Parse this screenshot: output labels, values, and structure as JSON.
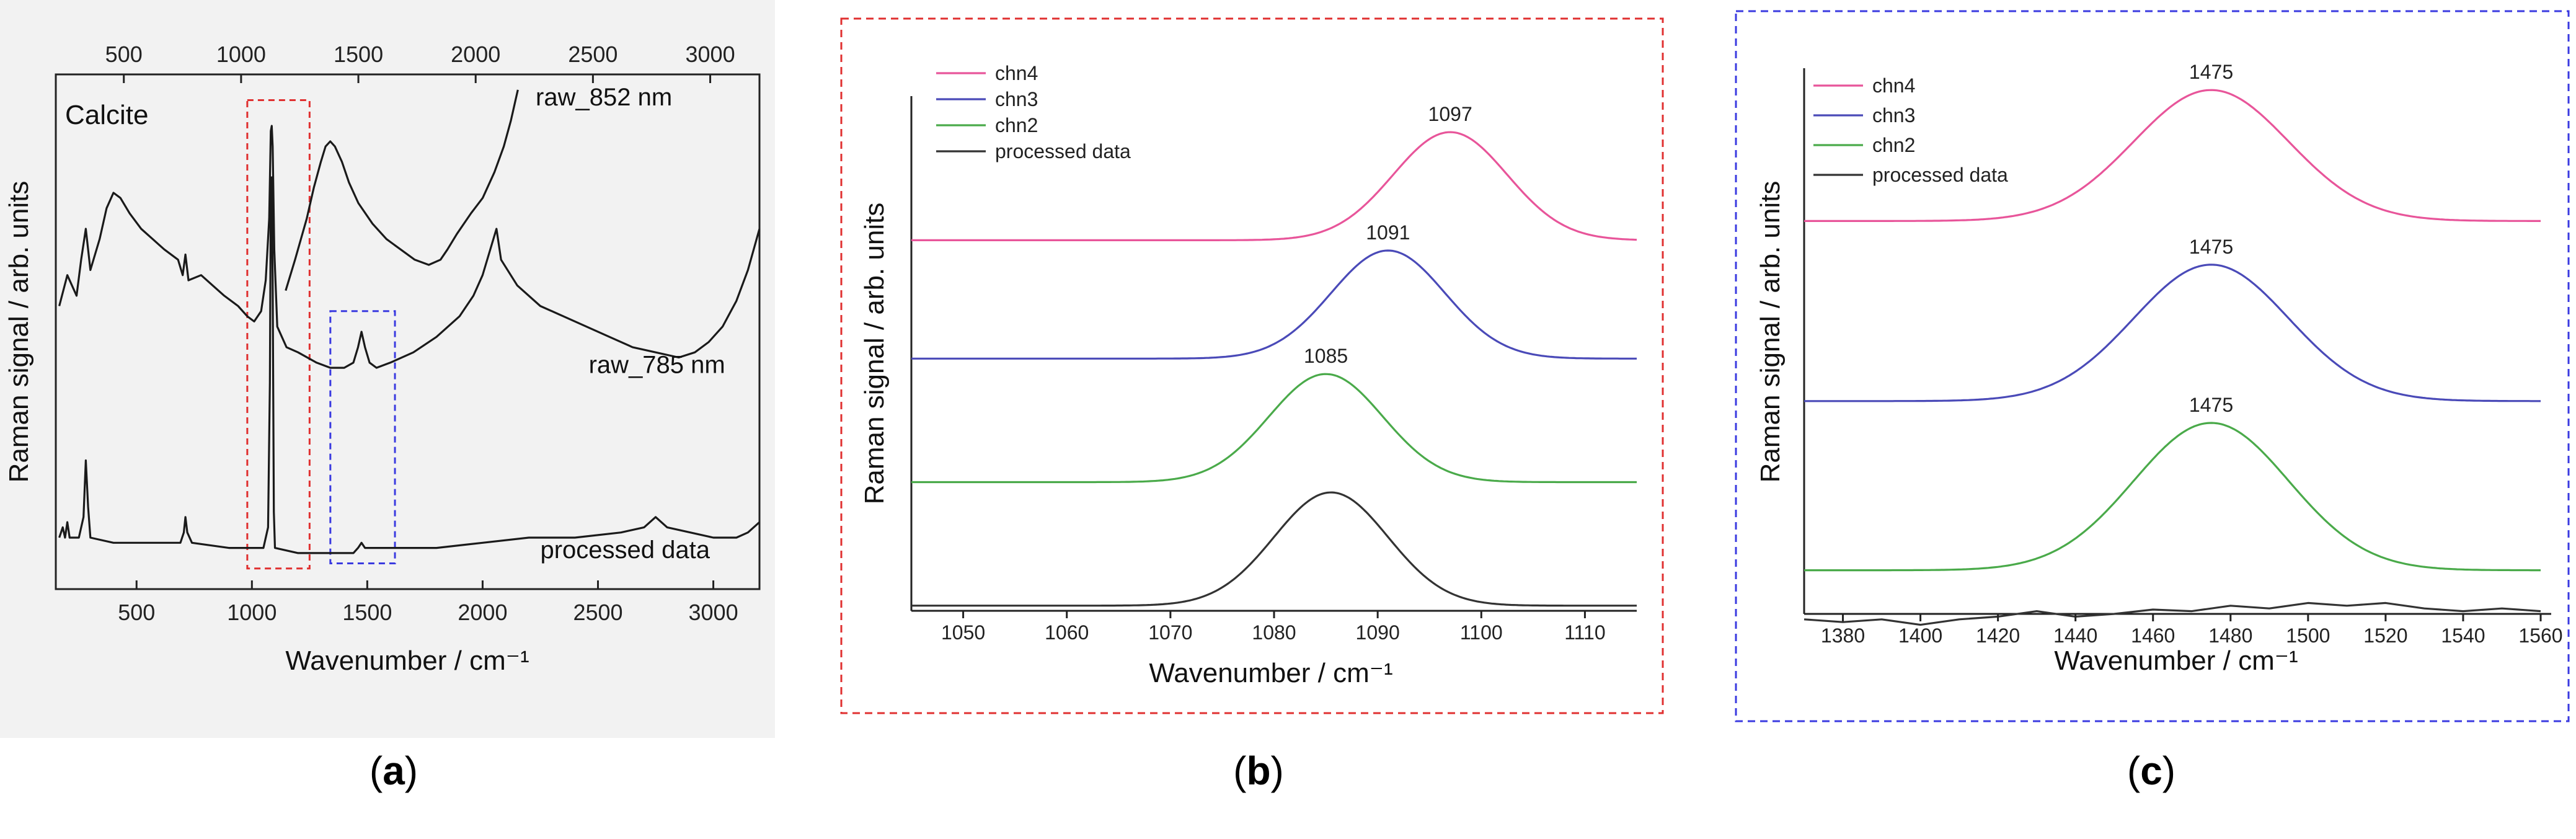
{
  "chart_data": [
    {
      "panel_label": "(a)",
      "panel_letter": "a",
      "type": "line",
      "title": "Calcite",
      "xlabel": "Wavenumber / cm⁻¹",
      "ylabel": "Raman signal / arb. units",
      "xlim": [
        150,
        3200
      ],
      "x_ticks": [
        500,
        1000,
        1500,
        2000,
        2500,
        3000
      ],
      "top_axis": {
        "xlim": [
          210,
          3210
        ],
        "ticks": [
          500,
          1000,
          1500,
          2000,
          2500,
          3000
        ]
      },
      "ylim": [
        0,
        100
      ],
      "series": [
        {
          "name": "raw_852 nm",
          "axis": "top",
          "color": "#1a1a1a",
          "points": [
            [
              1190,
              58
            ],
            [
              1230,
              64
            ],
            [
              1280,
              72
            ],
            [
              1310,
              78
            ],
            [
              1340,
              83
            ],
            [
              1360,
              86
            ],
            [
              1380,
              87
            ],
            [
              1400,
              86
            ],
            [
              1430,
              83
            ],
            [
              1460,
              79
            ],
            [
              1500,
              75
            ],
            [
              1560,
              71
            ],
            [
              1620,
              68
            ],
            [
              1680,
              66
            ],
            [
              1740,
              64
            ],
            [
              1800,
              63
            ],
            [
              1850,
              64
            ],
            [
              1880,
              66
            ],
            [
              1920,
              69
            ],
            [
              1980,
              73
            ],
            [
              2030,
              76
            ],
            [
              2080,
              81
            ],
            [
              2120,
              86
            ],
            [
              2150,
              91
            ],
            [
              2170,
              95
            ],
            [
              2180,
              97
            ]
          ]
        },
        {
          "name": "raw_785 nm",
          "axis": "bottom",
          "color": "#1a1a1a",
          "points": [
            [
              165,
              55
            ],
            [
              200,
              61
            ],
            [
              240,
              57
            ],
            [
              260,
              64
            ],
            [
              280,
              70
            ],
            [
              290,
              66
            ],
            [
              300,
              62
            ],
            [
              340,
              68
            ],
            [
              370,
              74
            ],
            [
              400,
              77
            ],
            [
              430,
              76
            ],
            [
              470,
              73
            ],
            [
              520,
              70
            ],
            [
              570,
              68
            ],
            [
              620,
              66
            ],
            [
              680,
              64
            ],
            [
              700,
              61
            ],
            [
              712,
              65
            ],
            [
              725,
              60
            ],
            [
              780,
              61
            ],
            [
              830,
              59
            ],
            [
              880,
              57
            ],
            [
              940,
              55
            ],
            [
              980,
              53
            ],
            [
              1010,
              52
            ],
            [
              1040,
              54
            ],
            [
              1060,
              60
            ],
            [
              1075,
              72
            ],
            [
              1082,
              89
            ],
            [
              1086,
              90
            ],
            [
              1090,
              86
            ],
            [
              1097,
              66
            ],
            [
              1110,
              51
            ],
            [
              1150,
              47
            ],
            [
              1200,
              46
            ],
            [
              1280,
              44
            ],
            [
              1340,
              43
            ],
            [
              1400,
              43
            ],
            [
              1440,
              44
            ],
            [
              1460,
              47
            ],
            [
              1475,
              50
            ],
            [
              1490,
              47
            ],
            [
              1510,
              44
            ],
            [
              1540,
              43
            ],
            [
              1600,
              44
            ],
            [
              1700,
              46
            ],
            [
              1800,
              49
            ],
            [
              1900,
              53
            ],
            [
              1960,
              57
            ],
            [
              2000,
              61
            ],
            [
              2040,
              67
            ],
            [
              2060,
              70
            ],
            [
              2080,
              64
            ],
            [
              2150,
              59
            ],
            [
              2250,
              55
            ],
            [
              2350,
              53
            ],
            [
              2450,
              51
            ],
            [
              2550,
              49
            ],
            [
              2650,
              47
            ],
            [
              2750,
              46
            ],
            [
              2850,
              45
            ],
            [
              2920,
              46
            ],
            [
              2980,
              48
            ],
            [
              3040,
              51
            ],
            [
              3100,
              56
            ],
            [
              3150,
              62
            ],
            [
              3200,
              70
            ]
          ]
        },
        {
          "name": "processed data",
          "axis": "bottom",
          "color": "#1a1a1a",
          "points": [
            [
              165,
              10
            ],
            [
              180,
              12
            ],
            [
              190,
              10
            ],
            [
              200,
              13
            ],
            [
              210,
              10
            ],
            [
              250,
              10
            ],
            [
              270,
              14
            ],
            [
              280,
              25
            ],
            [
              290,
              16
            ],
            [
              300,
              10
            ],
            [
              400,
              9
            ],
            [
              500,
              9
            ],
            [
              600,
              9
            ],
            [
              690,
              9
            ],
            [
              705,
              11
            ],
            [
              712,
              14
            ],
            [
              720,
              11
            ],
            [
              740,
              9
            ],
            [
              900,
              8
            ],
            [
              1000,
              8
            ],
            [
              1050,
              8
            ],
            [
              1070,
              12
            ],
            [
              1078,
              40
            ],
            [
              1082,
              78
            ],
            [
              1086,
              80
            ],
            [
              1090,
              60
            ],
            [
              1095,
              15
            ],
            [
              1100,
              8
            ],
            [
              1200,
              7
            ],
            [
              1300,
              7
            ],
            [
              1400,
              7
            ],
            [
              1440,
              7
            ],
            [
              1460,
              8
            ],
            [
              1475,
              9
            ],
            [
              1490,
              8
            ],
            [
              1600,
              8
            ],
            [
              1800,
              8
            ],
            [
              2000,
              9
            ],
            [
              2200,
              10
            ],
            [
              2400,
              10
            ],
            [
              2600,
              11
            ],
            [
              2700,
              12
            ],
            [
              2750,
              14
            ],
            [
              2800,
              12
            ],
            [
              2900,
              11
            ],
            [
              3000,
              10
            ],
            [
              3100,
              10
            ],
            [
              3150,
              11
            ],
            [
              3200,
              13
            ]
          ]
        }
      ],
      "annotations": [
        {
          "text": "raw_852 nm",
          "x": 2230,
          "y": 94
        },
        {
          "text": "raw_785 nm",
          "x": 2460,
          "y": 42
        },
        {
          "text": "processed data",
          "x": 2250,
          "y": 6
        }
      ],
      "highlight_boxes": [
        {
          "color": "#e03030",
          "x0": 980,
          "x1": 1250,
          "y0": 4,
          "y1": 95
        },
        {
          "color": "#3a3ae0",
          "x0": 1340,
          "x1": 1620,
          "y0": 5,
          "y1": 54
        }
      ]
    },
    {
      "panel_label": "(b)",
      "panel_letter": "b",
      "type": "line",
      "xlabel": "Wavenumber / cm⁻¹",
      "ylabel": "Raman signal / arb. units",
      "xlim": [
        1045,
        1115
      ],
      "x_ticks": [
        1050,
        1060,
        1070,
        1080,
        1090,
        1100,
        1110
      ],
      "ylim": [
        0,
        100
      ],
      "frame_color": "#e03030",
      "series": [
        {
          "name": "chn4",
          "color": "#e8559a",
          "baseline": 72,
          "amplitude": 21,
          "center": 1097,
          "sigma": 5.5,
          "peak_label": "1097"
        },
        {
          "name": "chn3",
          "color": "#4a4ab8",
          "baseline": 49,
          "amplitude": 21,
          "center": 1091,
          "sigma": 5.5,
          "peak_label": "1091"
        },
        {
          "name": "chn2",
          "color": "#4aaa4a",
          "baseline": 25,
          "amplitude": 21,
          "center": 1085,
          "sigma": 5.5,
          "peak_label": "1085"
        },
        {
          "name": "processed data",
          "color": "#333333",
          "baseline": 1,
          "amplitude": 22,
          "center": 1085.5,
          "sigma": 5.5,
          "peak_label": ""
        }
      ],
      "legend": [
        "chn4",
        "chn3",
        "chn2",
        "processed data"
      ]
    },
    {
      "panel_label": "(c)",
      "panel_letter": "c",
      "type": "line",
      "xlabel": "Wavenumber / cm⁻¹",
      "ylabel": "Raman signal / arb. units",
      "xlim": [
        1370,
        1560
      ],
      "x_ticks": [
        1380,
        1400,
        1420,
        1440,
        1460,
        1480,
        1500,
        1520,
        1540,
        1560
      ],
      "ylim": [
        0,
        100
      ],
      "frame_color": "#3a3ae0",
      "series": [
        {
          "name": "chn4",
          "color": "#e8559a",
          "baseline": 72,
          "amplitude": 24,
          "center": 1475,
          "sigma": 20,
          "peak_label": "1475"
        },
        {
          "name": "chn3",
          "color": "#4a4ab8",
          "baseline": 39,
          "amplitude": 25,
          "center": 1475,
          "sigma": 20,
          "peak_label": "1475"
        },
        {
          "name": "chn2",
          "color": "#4aaa4a",
          "baseline": 8,
          "amplitude": 27,
          "center": 1475,
          "sigma": 20,
          "peak_label": "1475"
        },
        {
          "name": "processed data",
          "color": "#333333",
          "points": [
            [
              1370,
              -1
            ],
            [
              1380,
              -1.5
            ],
            [
              1390,
              -1
            ],
            [
              1400,
              -2
            ],
            [
              1410,
              -1
            ],
            [
              1420,
              -0.5
            ],
            [
              1430,
              0.5
            ],
            [
              1440,
              -0.5
            ],
            [
              1450,
              0
            ],
            [
              1460,
              0.8
            ],
            [
              1470,
              0.5
            ],
            [
              1480,
              1.5
            ],
            [
              1490,
              1
            ],
            [
              1500,
              2
            ],
            [
              1510,
              1.5
            ],
            [
              1520,
              2
            ],
            [
              1530,
              1
            ],
            [
              1540,
              0.5
            ],
            [
              1550,
              1
            ],
            [
              1560,
              0.5
            ]
          ],
          "peak_label": ""
        }
      ],
      "legend": [
        "chn4",
        "chn3",
        "chn2",
        "processed data"
      ]
    }
  ]
}
